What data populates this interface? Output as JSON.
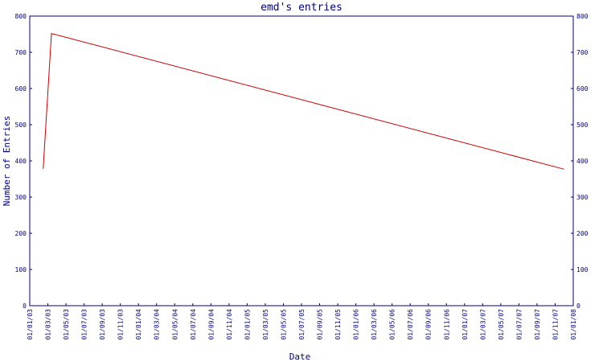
{
  "chart_data": {
    "type": "line",
    "title": "emd's entries",
    "xlabel": "Date",
    "ylabel": "Number of Entries",
    "x_ticks": [
      "01/01/03",
      "01/03/03",
      "01/05/03",
      "01/07/03",
      "01/09/03",
      "01/11/03",
      "01/01/04",
      "01/03/04",
      "01/05/04",
      "01/07/04",
      "01/09/04",
      "01/11/04",
      "01/01/05",
      "01/03/05",
      "01/05/05",
      "01/07/05",
      "01/09/05",
      "01/11/05",
      "01/01/06",
      "01/03/06",
      "01/05/06",
      "01/07/06",
      "01/09/06",
      "01/11/06",
      "01/01/07",
      "01/03/07",
      "01/05/07",
      "01/07/07",
      "01/09/07",
      "01/11/07",
      "01/01/08"
    ],
    "y_ticks": [
      0,
      100,
      200,
      300,
      400,
      500,
      600,
      700,
      800
    ],
    "ylim": [
      0,
      800
    ],
    "xlim": [
      "2003-01-01",
      "2008-01-01"
    ],
    "grid": false,
    "right_axis": true,
    "series": [
      {
        "color": "#cc0000",
        "points": [
          {
            "x": "2003-02-15",
            "y": 378
          },
          {
            "x": "2003-03-15",
            "y": 752
          },
          {
            "x": "2007-12-01",
            "y": 377
          }
        ]
      }
    ],
    "colors": {
      "axis": "#000080",
      "text": "#000080",
      "line": "#cc0000"
    }
  }
}
